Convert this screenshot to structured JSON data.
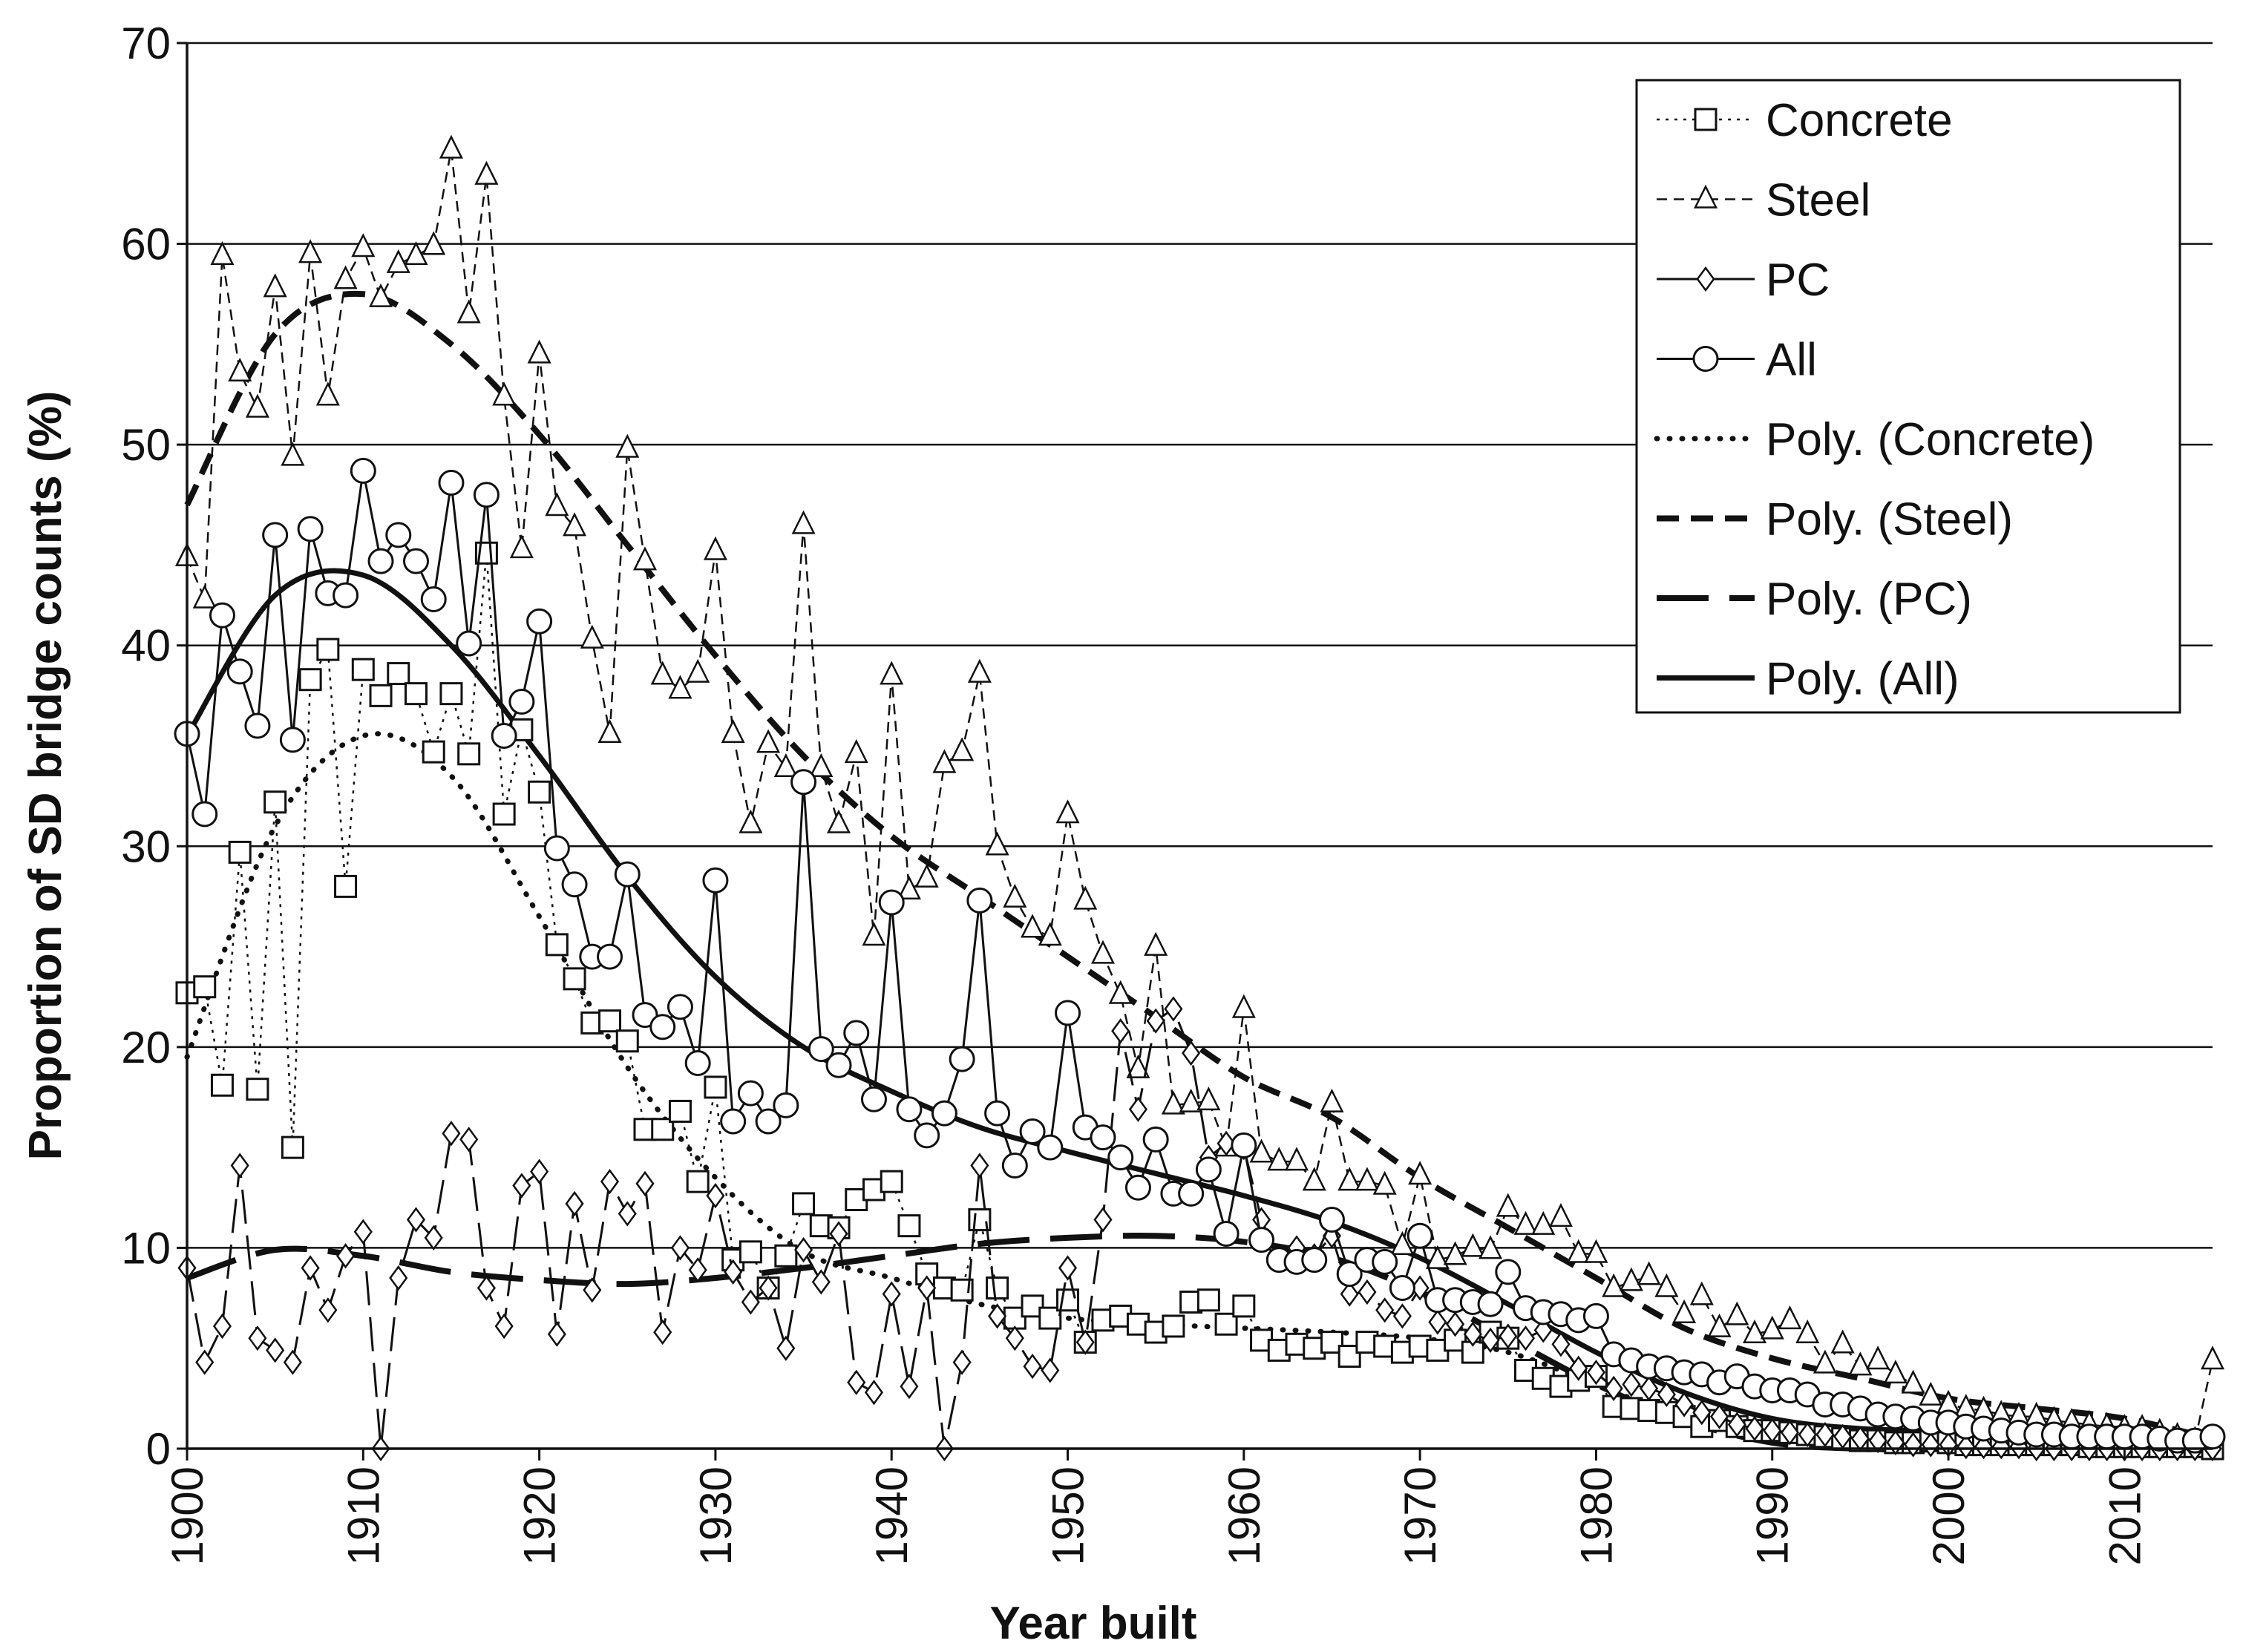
{
  "chart_data": {
    "type": "line",
    "title": "",
    "xlabel": "Year built",
    "ylabel": "Proportion of SD bridge counts (%)",
    "xlim": [
      1900,
      2015
    ],
    "ylim": [
      0,
      70
    ],
    "xticks": [
      1900,
      1910,
      1920,
      1930,
      1940,
      1950,
      1960,
      1970,
      1980,
      1990,
      2000,
      2010
    ],
    "yticks": [
      0,
      10,
      20,
      30,
      40,
      50,
      60,
      70
    ],
    "grid": "horizontal",
    "legend_position": "top-right",
    "series": [
      {
        "name": "Concrete",
        "style": "dotted",
        "marker": "square",
        "x": [
          1900,
          1901,
          1902,
          1903,
          1904,
          1905,
          1906,
          1907,
          1908,
          1909,
          1910,
          1911,
          1912,
          1913,
          1914,
          1915,
          1916,
          1917,
          1918,
          1919,
          1920,
          1921,
          1922,
          1923,
          1924,
          1925,
          1926,
          1927,
          1928,
          1929,
          1930,
          1931,
          1932,
          1933,
          1934,
          1935,
          1936,
          1937,
          1938,
          1939,
          1940,
          1941,
          1942,
          1943,
          1944,
          1945,
          1946,
          1947,
          1948,
          1949,
          1950,
          1951,
          1952,
          1953,
          1954,
          1955,
          1956,
          1957,
          1958,
          1959,
          1960,
          1961,
          1962,
          1963,
          1964,
          1965,
          1966,
          1967,
          1968,
          1969,
          1970,
          1971,
          1972,
          1973,
          1974,
          1975,
          1976,
          1977,
          1978,
          1979,
          1980,
          1981,
          1982,
          1983,
          1984,
          1985,
          1986,
          1987,
          1988,
          1989,
          1990,
          1991,
          1992,
          1993,
          1994,
          1995,
          1996,
          1997,
          1998,
          1999,
          2000,
          2001,
          2002,
          2003,
          2004,
          2005,
          2006,
          2007,
          2008,
          2009,
          2010,
          2011,
          2012,
          2013,
          2014,
          2015
        ],
        "values": [
          22.7,
          23.0,
          18.1,
          29.7,
          17.9,
          32.2,
          15.0,
          38.3,
          39.8,
          28.0,
          38.8,
          37.5,
          38.6,
          37.6,
          34.7,
          37.6,
          34.6,
          44.6,
          31.6,
          35.8,
          32.7,
          25.1,
          23.4,
          21.2,
          21.3,
          20.3,
          15.9,
          15.9,
          16.8,
          13.3,
          18.0,
          9.4,
          9.8,
          8.0,
          9.6,
          12.2,
          11.1,
          11.0,
          12.4,
          12.9,
          13.3,
          11.1,
          8.7,
          8.0,
          7.9,
          11.4,
          8.0,
          6.5,
          7.1,
          6.5,
          7.4,
          5.3,
          6.4,
          6.6,
          6.2,
          5.8,
          6.1,
          7.3,
          7.4,
          6.2,
          7.1,
          5.4,
          4.9,
          5.2,
          5.0,
          5.3,
          4.6,
          5.3,
          5.1,
          4.8,
          5.1,
          4.9,
          5.4,
          4.8,
          5.8,
          5.5,
          3.9,
          3.5,
          3.1,
          3.4,
          3.6,
          2.1,
          2.0,
          1.9,
          1.8,
          1.6,
          1.1,
          1.4,
          1.1,
          0.9,
          0.9,
          0.8,
          0.7,
          0.6,
          0.5,
          0.4,
          0.4,
          0.3,
          0.3,
          0.4,
          0.3,
          0.2,
          0.2,
          0.2,
          0.2,
          0.2,
          0.2,
          0.2,
          0.1,
          0.1,
          0.1,
          0.1,
          0.1,
          0.1,
          0.1,
          0.0
        ]
      },
      {
        "name": "Steel",
        "style": "dashed",
        "marker": "triangle",
        "x": [
          1900,
          1901,
          1902,
          1903,
          1904,
          1905,
          1906,
          1907,
          1908,
          1909,
          1910,
          1911,
          1912,
          1913,
          1914,
          1915,
          1916,
          1917,
          1918,
          1919,
          1920,
          1921,
          1922,
          1923,
          1924,
          1925,
          1926,
          1927,
          1928,
          1929,
          1930,
          1931,
          1932,
          1933,
          1934,
          1935,
          1936,
          1937,
          1938,
          1939,
          1940,
          1941,
          1942,
          1943,
          1944,
          1945,
          1946,
          1947,
          1948,
          1949,
          1950,
          1951,
          1952,
          1953,
          1954,
          1955,
          1956,
          1957,
          1958,
          1959,
          1960,
          1961,
          1962,
          1963,
          1964,
          1965,
          1966,
          1967,
          1968,
          1969,
          1970,
          1971,
          1972,
          1973,
          1974,
          1975,
          1976,
          1977,
          1978,
          1979,
          1980,
          1981,
          1982,
          1983,
          1984,
          1985,
          1986,
          1987,
          1988,
          1989,
          1990,
          1991,
          1992,
          1993,
          1994,
          1995,
          1996,
          1997,
          1998,
          1999,
          2000,
          2001,
          2002,
          2003,
          2004,
          2005,
          2006,
          2007,
          2008,
          2009,
          2010,
          2011,
          2012,
          2013,
          2014,
          2015
        ],
        "values": [
          44.4,
          42.3,
          59.4,
          53.6,
          51.8,
          57.8,
          49.4,
          59.5,
          52.4,
          58.2,
          59.8,
          57.3,
          59.0,
          59.4,
          59.9,
          64.7,
          56.5,
          63.4,
          52.4,
          44.8,
          54.5,
          46.9,
          45.9,
          40.3,
          35.6,
          49.8,
          44.2,
          38.5,
          37.8,
          38.6,
          44.7,
          35.6,
          31.1,
          35.1,
          33.9,
          46.0,
          33.9,
          31.1,
          34.6,
          25.5,
          38.5,
          27.8,
          28.4,
          34.1,
          34.7,
          38.6,
          30.0,
          27.4,
          25.9,
          25.5,
          31.6,
          27.3,
          24.6,
          22.6,
          18.9,
          25.0,
          17.1,
          17.2,
          17.3,
          15.0,
          21.9,
          14.7,
          14.3,
          14.3,
          13.3,
          17.2,
          13.3,
          13.3,
          13.1,
          10.1,
          13.6,
          9.4,
          9.6,
          10.0,
          9.9,
          12.0,
          11.1,
          11.1,
          11.5,
          9.7,
          9.7,
          8.0,
          8.3,
          8.6,
          8.0,
          6.7,
          7.6,
          6.0,
          6.6,
          5.7,
          5.9,
          6.4,
          5.7,
          4.2,
          5.2,
          4.1,
          4.4,
          3.7,
          3.2,
          2.6,
          2.2,
          2.0,
          1.9,
          1.7,
          1.6,
          1.6,
          1.4,
          1.3,
          1.2,
          1.1,
          1.0,
          1.0,
          0.8,
          0.6,
          0.4,
          4.4
        ]
      },
      {
        "name": "PC",
        "style": "solid",
        "marker": "diamond",
        "x": [
          1900,
          1901,
          1902,
          1903,
          1904,
          1905,
          1906,
          1907,
          1908,
          1909,
          1910,
          1911,
          1912,
          1913,
          1914,
          1915,
          1916,
          1917,
          1918,
          1919,
          1920,
          1921,
          1922,
          1923,
          1924,
          1925,
          1926,
          1927,
          1928,
          1929,
          1930,
          1931,
          1932,
          1933,
          1934,
          1935,
          1936,
          1937,
          1938,
          1939,
          1940,
          1941,
          1942,
          1943,
          1944,
          1945,
          1946,
          1947,
          1948,
          1949,
          1950,
          1951,
          1952,
          1953,
          1954,
          1955,
          1956,
          1957,
          1958,
          1959,
          1960,
          1961,
          1962,
          1963,
          1964,
          1965,
          1966,
          1967,
          1968,
          1969,
          1970,
          1971,
          1972,
          1973,
          1974,
          1975,
          1976,
          1977,
          1978,
          1979,
          1980,
          1981,
          1982,
          1983,
          1984,
          1985,
          1986,
          1987,
          1988,
          1989,
          1990,
          1991,
          1992,
          1993,
          1994,
          1995,
          1996,
          1997,
          1998,
          1999,
          2000,
          2001,
          2002,
          2003,
          2004,
          2005,
          2006,
          2007,
          2008,
          2009,
          2010,
          2011,
          2012,
          2013,
          2014,
          2015
        ],
        "values": [
          9.0,
          4.3,
          6.1,
          14.1,
          5.5,
          4.9,
          4.3,
          9.0,
          6.9,
          9.6,
          10.8,
          0.0,
          8.5,
          11.4,
          10.5,
          15.7,
          15.4,
          8.0,
          6.1,
          13.1,
          13.8,
          5.7,
          12.2,
          7.9,
          13.3,
          11.7,
          13.2,
          5.8,
          10.0,
          8.9,
          12.6,
          8.8,
          7.3,
          8.0,
          5.0,
          9.9,
          8.3,
          10.7,
          3.3,
          2.8,
          7.7,
          3.1,
          8.0,
          0.0,
          4.3,
          14.1,
          6.6,
          5.5,
          4.1,
          3.9,
          9.0,
          5.3,
          11.4,
          20.8,
          16.9,
          21.3,
          21.9,
          19.7,
          14.5,
          15.2,
          15.0,
          11.4,
          9.4,
          10.0,
          9.6,
          10.6,
          7.7,
          7.8,
          6.9,
          6.6,
          8.0,
          6.3,
          6.2,
          5.7,
          5.4,
          5.6,
          5.5,
          5.9,
          5.2,
          4.0,
          3.8,
          3.0,
          3.2,
          3.0,
          2.7,
          2.2,
          1.8,
          1.6,
          1.2,
          1.0,
          0.9,
          0.8,
          0.7,
          0.7,
          0.6,
          0.5,
          0.4,
          0.3,
          0.2,
          0.2,
          0.2,
          0.1,
          0.1,
          0.1,
          0.1,
          0.0,
          0.0,
          0.0,
          0.0,
          0.0,
          0.0,
          0.0,
          0.0,
          0.0,
          0.0,
          0.0
        ]
      },
      {
        "name": "All",
        "style": "solid",
        "marker": "circle",
        "x": [
          1900,
          1901,
          1902,
          1903,
          1904,
          1905,
          1906,
          1907,
          1908,
          1909,
          1910,
          1911,
          1912,
          1913,
          1914,
          1915,
          1916,
          1917,
          1918,
          1919,
          1920,
          1921,
          1922,
          1923,
          1924,
          1925,
          1926,
          1927,
          1928,
          1929,
          1930,
          1931,
          1932,
          1933,
          1934,
          1935,
          1936,
          1937,
          1938,
          1939,
          1940,
          1941,
          1942,
          1943,
          1944,
          1945,
          1946,
          1947,
          1948,
          1949,
          1950,
          1951,
          1952,
          1953,
          1954,
          1955,
          1956,
          1957,
          1958,
          1959,
          1960,
          1961,
          1962,
          1963,
          1964,
          1965,
          1966,
          1967,
          1968,
          1969,
          1970,
          1971,
          1972,
          1973,
          1974,
          1975,
          1976,
          1977,
          1978,
          1979,
          1980,
          1981,
          1982,
          1983,
          1984,
          1985,
          1986,
          1987,
          1988,
          1989,
          1990,
          1991,
          1992,
          1993,
          1994,
          1995,
          1996,
          1997,
          1998,
          1999,
          2000,
          2001,
          2002,
          2003,
          2004,
          2005,
          2006,
          2007,
          2008,
          2009,
          2010,
          2011,
          2012,
          2013,
          2014,
          2015
        ],
        "values": [
          35.6,
          31.6,
          41.5,
          38.7,
          36.0,
          45.5,
          35.3,
          45.8,
          42.6,
          42.5,
          48.7,
          44.2,
          45.5,
          44.2,
          42.3,
          48.1,
          40.1,
          47.5,
          35.5,
          37.2,
          41.2,
          29.9,
          28.1,
          24.5,
          24.5,
          28.6,
          21.6,
          21.0,
          22.0,
          19.2,
          28.3,
          16.3,
          17.7,
          16.3,
          17.1,
          33.2,
          19.9,
          19.1,
          20.7,
          17.4,
          27.2,
          16.9,
          15.6,
          16.7,
          19.4,
          27.3,
          16.7,
          14.1,
          15.8,
          15.0,
          21.7,
          16.0,
          15.5,
          14.5,
          13.0,
          15.4,
          12.7,
          12.7,
          13.9,
          10.7,
          15.1,
          10.4,
          9.4,
          9.3,
          9.4,
          11.4,
          8.7,
          9.4,
          9.3,
          8.0,
          10.6,
          7.4,
          7.4,
          7.3,
          7.2,
          8.8,
          7.0,
          6.8,
          6.7,
          6.4,
          6.6,
          4.7,
          4.4,
          4.1,
          4.0,
          3.8,
          3.7,
          3.3,
          3.6,
          3.1,
          2.9,
          2.9,
          2.7,
          2.2,
          2.2,
          2.0,
          1.7,
          1.6,
          1.5,
          1.3,
          1.3,
          1.1,
          1.0,
          0.9,
          0.8,
          0.7,
          0.7,
          0.6,
          0.6,
          0.6,
          0.6,
          0.6,
          0.5,
          0.4,
          0.4,
          0.6
        ]
      }
    ],
    "trendlines": [
      {
        "name": "Poly. (Concrete)",
        "style": "dotted",
        "x": [
          1900,
          1905,
          1910,
          1915,
          1920,
          1925,
          1930,
          1935,
          1940,
          1945,
          1950,
          1955,
          1960,
          1965,
          1970,
          1975,
          1980,
          1985,
          1990,
          1995,
          2000,
          2005,
          2010,
          2015
        ],
        "values": [
          19.5,
          31.0,
          35.5,
          33.5,
          26.5,
          19.0,
          13.5,
          9.8,
          8.5,
          7.2,
          6.5,
          6.2,
          6.0,
          5.8,
          5.5,
          4.8,
          3.2,
          1.5,
          0.5,
          0.2,
          0.2,
          0.2,
          0.2,
          0.1
        ]
      },
      {
        "name": "Poly. (Steel)",
        "style": "dashed",
        "x": [
          1900,
          1905,
          1910,
          1915,
          1920,
          1925,
          1930,
          1935,
          1940,
          1945,
          1950,
          1955,
          1960,
          1965,
          1970,
          1975,
          1980,
          1985,
          1990,
          1995,
          2000,
          2005,
          2010,
          2015
        ],
        "values": [
          47.0,
          55.5,
          57.5,
          55.0,
          50.5,
          45.0,
          39.5,
          34.5,
          30.5,
          27.5,
          24.5,
          21.5,
          18.5,
          16.5,
          13.5,
          11.0,
          8.5,
          6.0,
          4.5,
          3.5,
          2.5,
          2.0,
          1.5,
          0.5
        ]
      },
      {
        "name": "Poly. (PC)",
        "style": "long-dash",
        "x": [
          1900,
          1905,
          1910,
          1915,
          1920,
          1925,
          1930,
          1935,
          1940,
          1945,
          1950,
          1955,
          1960,
          1965,
          1970,
          1975,
          1980,
          1985,
          1990,
          1995,
          2000,
          2005,
          2010,
          2015
        ],
        "values": [
          8.5,
          9.9,
          9.6,
          8.8,
          8.4,
          8.2,
          8.5,
          9.0,
          9.6,
          10.2,
          10.5,
          10.6,
          10.3,
          9.5,
          7.8,
          5.5,
          3.2,
          1.4,
          0.3,
          0.0,
          0.0,
          0.5,
          1.0,
          0.3
        ]
      },
      {
        "name": "Poly. (All)",
        "style": "solid-thick",
        "x": [
          1900,
          1905,
          1910,
          1915,
          1920,
          1925,
          1930,
          1935,
          1940,
          1945,
          1950,
          1955,
          1960,
          1965,
          1970,
          1975,
          1980,
          1985,
          1990,
          1995,
          2000,
          2005,
          2010,
          2015
        ],
        "values": [
          35.5,
          42.5,
          43.5,
          40.0,
          34.5,
          28.5,
          23.5,
          20.0,
          17.8,
          16.0,
          14.8,
          13.7,
          12.6,
          11.3,
          9.5,
          7.2,
          4.8,
          2.8,
          1.5,
          1.0,
          0.9,
          0.9,
          0.8,
          0.6
        ]
      }
    ],
    "legend": [
      "Concrete",
      "Steel",
      "PC",
      "All",
      "Poly. (Concrete)",
      "Poly. (Steel)",
      "Poly. (PC)",
      "Poly. (All)"
    ]
  }
}
